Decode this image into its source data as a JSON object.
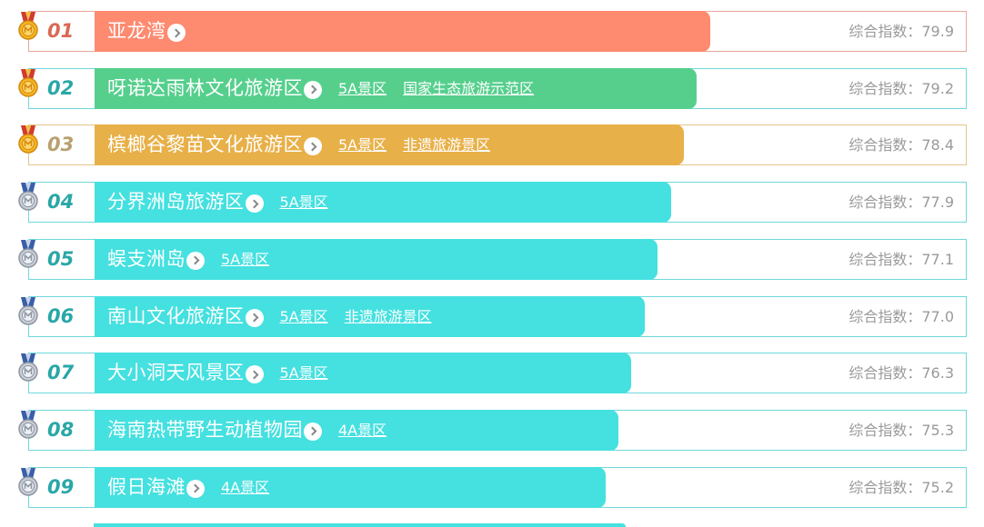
{
  "colors": {
    "coral": "#fe8a70",
    "green": "#56cf8d",
    "gold": "#e8b048",
    "cyan": "#45e0e0",
    "rank_red": "#d96a55",
    "rank_teal": "#2aa7a7",
    "rank_gold": "#b8a070",
    "border_coral": "#e8a79a",
    "border_cyan": "#6fd8dc",
    "border_gold": "#e3c58a"
  },
  "score_label": "综合指数：",
  "items": [
    {
      "rank": "01",
      "name": "亚龙湾",
      "tags": [],
      "score": "79.9",
      "bar_fraction": 0.705,
      "color": "coral",
      "medal": "gold"
    },
    {
      "rank": "02",
      "name": "呀诺达雨林文化旅游区",
      "tags": [
        "5A景区",
        "国家生态旅游示范区"
      ],
      "score": "79.2",
      "bar_fraction": 0.69,
      "color": "green",
      "medal": "gold"
    },
    {
      "rank": "03",
      "name": "槟榔谷黎苗文化旅游区",
      "tags": [
        "5A景区",
        "非遗旅游景区"
      ],
      "score": "78.4",
      "bar_fraction": 0.675,
      "color": "gold",
      "medal": "gold"
    },
    {
      "rank": "04",
      "name": "分界洲岛旅游区",
      "tags": [
        "5A景区"
      ],
      "score": "77.9",
      "bar_fraction": 0.66,
      "color": "cyan",
      "medal": "silver"
    },
    {
      "rank": "05",
      "name": "蜈支洲岛",
      "tags": [
        "5A景区"
      ],
      "score": "77.1",
      "bar_fraction": 0.645,
      "color": "cyan",
      "medal": "silver"
    },
    {
      "rank": "06",
      "name": "南山文化旅游区",
      "tags": [
        "5A景区",
        "非遗旅游景区"
      ],
      "score": "77.0",
      "bar_fraction": 0.63,
      "color": "cyan",
      "medal": "silver"
    },
    {
      "rank": "07",
      "name": "大小洞天风景区",
      "tags": [
        "5A景区"
      ],
      "score": "76.3",
      "bar_fraction": 0.615,
      "color": "cyan",
      "medal": "silver"
    },
    {
      "rank": "08",
      "name": "海南热带野生动植物园",
      "tags": [
        "4A景区"
      ],
      "score": "75.3",
      "bar_fraction": 0.6,
      "color": "cyan",
      "medal": "silver"
    },
    {
      "rank": "09",
      "name": "假日海滩",
      "tags": [
        "4A景区"
      ],
      "score": "75.2",
      "bar_fraction": 0.585,
      "color": "cyan",
      "medal": "silver"
    }
  ]
}
